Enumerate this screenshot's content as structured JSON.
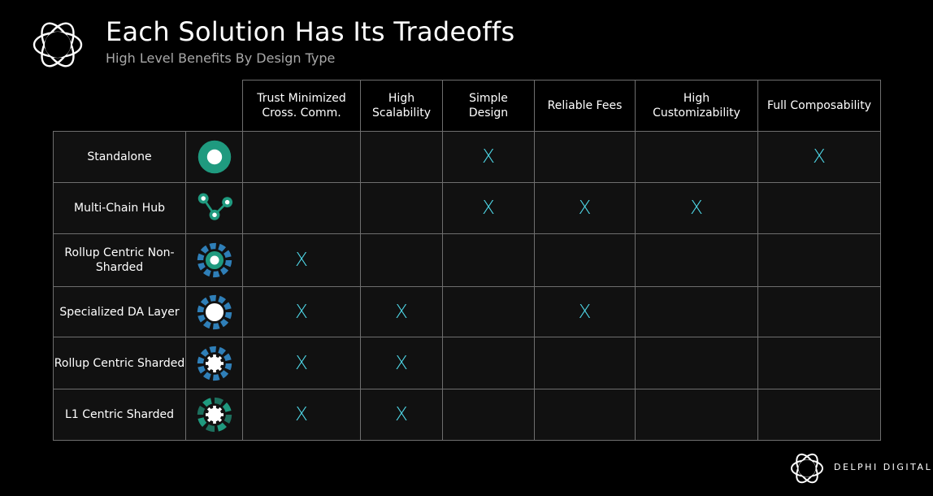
{
  "header": {
    "title": "Each Solution Has Its Tradeoffs",
    "subtitle": "High Level Benefits By Design Type"
  },
  "footer": {
    "brand": "DELPHI DIGITAL"
  },
  "colors": {
    "accent_teal": "#1f9a7f",
    "accent_blue": "#2f7fb8",
    "mark": "#4fd8e8"
  },
  "chart_data": {
    "type": "table",
    "columns": [
      "Trust Minimized Cross. Comm.",
      "High Scalability",
      "Simple Design",
      "Reliable Fees",
      "High Customizability",
      "Full Composability"
    ],
    "rows": [
      {
        "label": "Standalone",
        "icon": "standalone-icon",
        "cells": [
          "",
          "",
          "X",
          "",
          "",
          "X"
        ]
      },
      {
        "label": "Multi-Chain Hub",
        "icon": "multi-chain-hub-icon",
        "cells": [
          "",
          "",
          "X",
          "X",
          "X",
          ""
        ]
      },
      {
        "label": "Rollup Centric Non-Sharded",
        "icon": "rollup-centric-non-sharded-icon",
        "cells": [
          "X",
          "",
          "",
          "",
          "",
          ""
        ]
      },
      {
        "label": "Specialized DA Layer",
        "icon": "specialized-da-layer-icon",
        "cells": [
          "X",
          "X",
          "",
          "X",
          "",
          ""
        ]
      },
      {
        "label": "Rollup Centric Sharded",
        "icon": "rollup-centric-sharded-icon",
        "cells": [
          "X",
          "X",
          "",
          "",
          "",
          ""
        ]
      },
      {
        "label": "L1 Centric Sharded",
        "icon": "l1-centric-sharded-icon",
        "cells": [
          "X",
          "X",
          "",
          "",
          "",
          ""
        ]
      }
    ]
  }
}
